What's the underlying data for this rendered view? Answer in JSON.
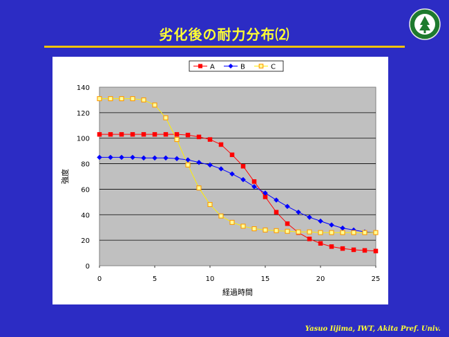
{
  "slide": {
    "title": "劣化後の耐力分布⑵",
    "footer": "Yasuo Iijima, IWT, Akita Pref.  Univ."
  },
  "colors": {
    "background": "#2c2cc4",
    "title": "#ffff33",
    "underline": "#f2c200",
    "plot_area": "#c0c0c0"
  },
  "chart_data": {
    "type": "line",
    "title": "",
    "xlabel": "経過時間",
    "ylabel": "強度",
    "xlim": [
      0,
      25
    ],
    "ylim": [
      0,
      140
    ],
    "xticks": [
      0,
      5,
      10,
      15,
      20,
      25
    ],
    "yticks": [
      0,
      20,
      40,
      60,
      80,
      100,
      120,
      140
    ],
    "grid": "horizontal",
    "legend_position": "top",
    "x": [
      0,
      1,
      2,
      3,
      4,
      5,
      6,
      7,
      8,
      9,
      10,
      11,
      12,
      13,
      14,
      15,
      16,
      17,
      18,
      19,
      20,
      21,
      22,
      23,
      24,
      25
    ],
    "series": [
      {
        "name": "A",
        "color": "#ff0000",
        "marker": "square-filled",
        "values": [
          103,
          103,
          103,
          103,
          103,
          103,
          103,
          103,
          102.5,
          101,
          99,
          95,
          87,
          78,
          66,
          54,
          42,
          33,
          26,
          21,
          17.5,
          15,
          13.5,
          12.5,
          12,
          11.5
        ]
      },
      {
        "name": "B",
        "color": "#0000ff",
        "marker": "diamond-filled",
        "values": [
          85,
          85,
          85,
          85,
          84.5,
          84.5,
          84.5,
          84,
          83,
          81,
          79,
          76,
          72,
          67.5,
          62,
          57,
          51.5,
          46.5,
          42,
          38,
          35,
          32,
          29.5,
          28,
          26.5,
          26
        ]
      },
      {
        "name": "C",
        "color": "#ff9900",
        "marker": "square-open",
        "values": [
          131,
          131,
          131,
          131,
          130,
          126,
          116,
          99,
          79,
          61,
          48,
          39,
          34,
          31,
          29,
          28,
          27.5,
          27,
          26.5,
          26.5,
          26,
          26,
          26,
          26,
          26,
          26
        ]
      }
    ]
  }
}
